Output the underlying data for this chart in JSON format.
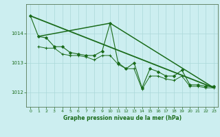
{
  "title": "Graphe pression niveau de la mer (hPa)",
  "bg_color": "#cceef0",
  "grid_color": "#aad8d8",
  "line_color": "#1a6b1a",
  "xlim": [
    -0.5,
    23.5
  ],
  "ylim": [
    1011.5,
    1015.0
  ],
  "yticks": [
    1012,
    1013,
    1014
  ],
  "xticks": [
    0,
    1,
    2,
    3,
    4,
    5,
    6,
    7,
    8,
    9,
    10,
    11,
    12,
    13,
    14,
    15,
    16,
    17,
    18,
    19,
    20,
    21,
    22,
    23
  ],
  "series": [
    {
      "x": [
        0,
        1,
        2,
        3,
        4,
        5,
        6,
        7,
        8,
        9,
        10,
        11,
        12,
        13,
        14,
        15,
        16,
        17,
        18,
        19,
        20,
        21,
        22,
        23
      ],
      "y": [
        1014.6,
        1013.9,
        1013.85,
        1013.55,
        1013.55,
        1013.35,
        1013.3,
        1013.25,
        1013.25,
        1013.4,
        1014.35,
        1013.0,
        1012.8,
        1013.0,
        1012.15,
        1012.8,
        1012.7,
        1012.55,
        1012.55,
        1012.75,
        1012.25,
        1012.25,
        1012.2,
        1012.2
      ],
      "marker": "D",
      "markersize": 2.0,
      "linewidth": 0.8
    },
    {
      "x": [
        1,
        2,
        3,
        4,
        5,
        6,
        7,
        8,
        9,
        10,
        11,
        12,
        13,
        14,
        15,
        16,
        17,
        18,
        19,
        20,
        21,
        22,
        23
      ],
      "y": [
        1013.55,
        1013.5,
        1013.5,
        1013.3,
        1013.25,
        1013.25,
        1013.2,
        1013.1,
        1013.25,
        1013.25,
        1012.95,
        1012.8,
        1012.8,
        1012.1,
        1012.55,
        1012.55,
        1012.45,
        1012.4,
        1012.55,
        1012.2,
        1012.2,
        1012.15,
        1012.15
      ],
      "marker": "+",
      "markersize": 3.5,
      "linewidth": 0.7
    },
    {
      "x": [
        0,
        23
      ],
      "y": [
        1014.6,
        1012.15
      ],
      "marker": null,
      "markersize": 0,
      "linewidth": 1.3
    },
    {
      "x": [
        1,
        10,
        23
      ],
      "y": [
        1013.9,
        1014.35,
        1012.15
      ],
      "marker": null,
      "markersize": 0,
      "linewidth": 1.1
    }
  ]
}
